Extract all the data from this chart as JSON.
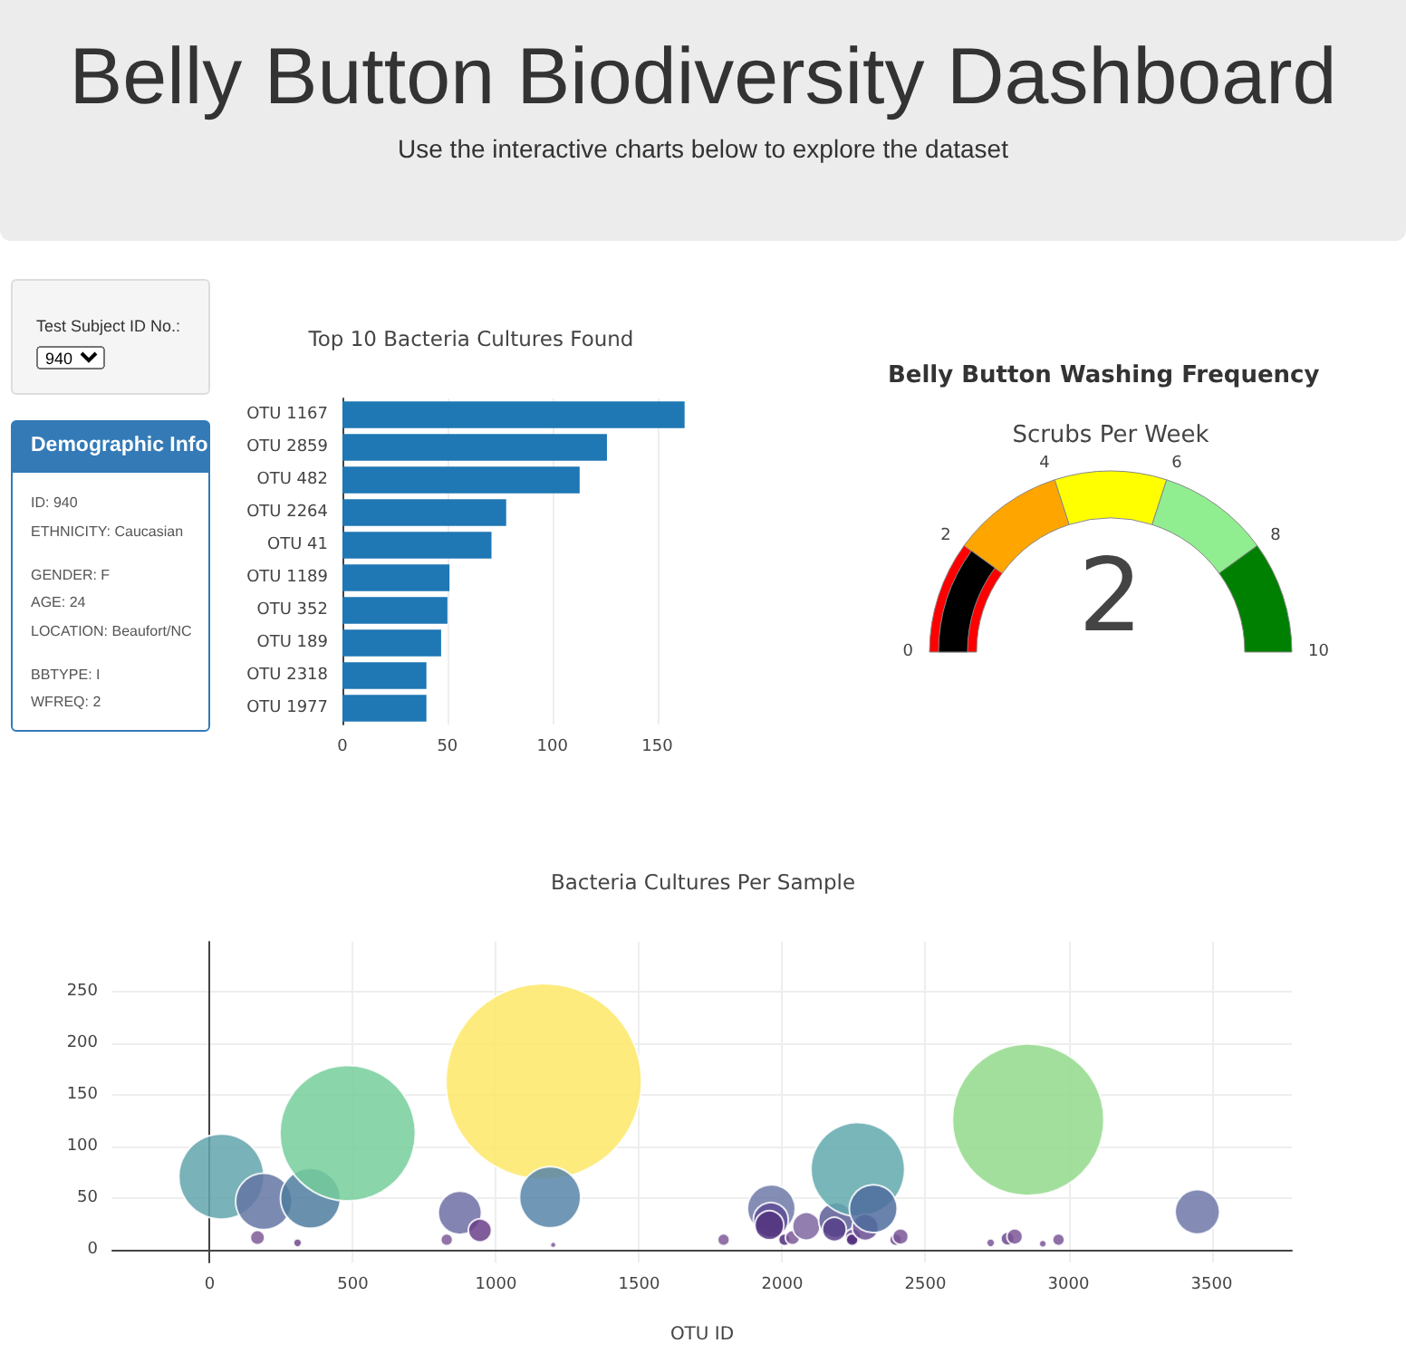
{
  "chart_data": [
    {
      "type": "other",
      "title": "Belly Button Biodiversity Dashboard",
      "subtitle": "Use the interactive charts below to explore the dataset"
    },
    {
      "type": "other",
      "title": "Test Subject ID No.:",
      "annotations": [
        "940"
      ]
    },
    {
      "type": "other",
      "title": "Demographic Info",
      "annotations": [
        "ID: 940",
        "ETHNICITY: Caucasian",
        "GENDER: F",
        "AGE: 24",
        "LOCATION: Beaufort/NC",
        "BBTYPE: I",
        "WFREQ: 2"
      ]
    },
    {
      "type": "bar",
      "orientation": "horizontal",
      "title": "Top 10 Bacteria Cultures Found",
      "categories": [
        "OTU 1167",
        "OTU 2859",
        "OTU 482",
        "OTU 2264",
        "OTU 41",
        "OTU 1189",
        "OTU 352",
        "OTU 189",
        "OTU 2318",
        "OTU 1977"
      ],
      "values": [
        163,
        126,
        113,
        78,
        71,
        51,
        50,
        47,
        40,
        40
      ],
      "color": "#1f77b4",
      "xlim": [
        0,
        164
      ],
      "xticks": [
        0,
        50,
        100,
        150
      ],
      "grid": "x"
    },
    {
      "type": "other",
      "title": "Belly Button Washing Frequency",
      "subtitle": "Scrubs Per Week",
      "colors": [
        "#ff0000",
        "#ffa500",
        "#ffff00",
        "#90ee90",
        "#008000"
      ],
      "annotations": [
        "0",
        "2",
        "4",
        "6",
        "8",
        "10",
        "2"
      ]
    },
    {
      "type": "bubble",
      "title": "Bacteria Cultures Per Sample",
      "xlabel": "OTU ID",
      "x": [
        41,
        167,
        189,
        307,
        352,
        482,
        828,
        874,
        944,
        1167,
        1189,
        1200,
        1795,
        1962,
        1960,
        1955,
        2008,
        2036,
        2084,
        2188,
        2182,
        2247,
        2244,
        2264,
        2290,
        2318,
        2396,
        2413,
        2728,
        2787,
        2812,
        2859,
        2910,
        2965,
        3450
      ],
      "values": [
        71,
        12,
        47,
        7,
        50,
        113,
        10,
        36,
        19,
        163,
        51,
        5,
        10,
        40,
        29,
        24,
        10,
        12,
        23,
        29,
        20,
        13,
        10,
        78,
        22,
        40,
        10,
        13,
        7,
        11,
        13,
        126,
        6,
        10,
        37
      ],
      "sizes": [
        0.19,
        0.0054,
        0.083,
        0.0018,
        0.094,
        0.48,
        0.0038,
        0.049,
        0.014,
        1,
        0.098,
        0.0009,
        0.0038,
        0.06,
        0.032,
        0.022,
        0.0038,
        0.0054,
        0.02,
        0.032,
        0.015,
        0.0064,
        0.0038,
        0.23,
        0.018,
        0.06,
        0.0038,
        0.0064,
        0.0018,
        0.0046,
        0.0064,
        0.6,
        0.0014,
        0.0038,
        0.052
      ],
      "colors": [
        "#62a4ac",
        "#7e5a98",
        "#6475a2",
        "#6f4a8e",
        "#4f7c9f",
        "#76ce9b",
        "#7e5a98",
        "#6d6ea3",
        "#6a3f8a",
        "#fde866",
        "#5785a8",
        "#7e5a98",
        "#7e5a98",
        "#6f7aa8",
        "#5e4e94",
        "#52357f",
        "#4f2e7c",
        "#7b5a98",
        "#7f68a2",
        "#5c5c98",
        "#573f88",
        "#6a4a8e",
        "#4f2a7a",
        "#62a9ae",
        "#694e93",
        "#4f6d9f",
        "#6a4a8e",
        "#7a5696",
        "#7a5696",
        "#6a4a8e",
        "#7a5696",
        "#93d98b",
        "#7a5696",
        "#7a5696",
        "#6f78a8"
      ],
      "xlim": [
        -340,
        3780
      ],
      "ylim": [
        -12,
        298
      ],
      "xticks": [
        0,
        500,
        1000,
        1500,
        2000,
        2500,
        3000,
        3500
      ],
      "yticks": [
        0,
        50,
        100,
        150,
        200,
        250
      ],
      "grid": true
    }
  ]
}
